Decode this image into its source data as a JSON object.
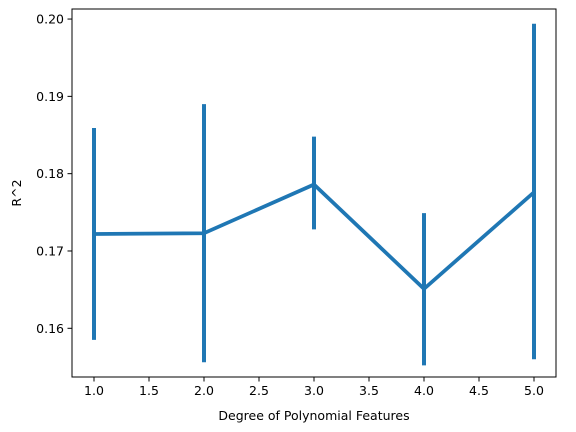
{
  "chart_data": {
    "type": "line",
    "title": "",
    "xlabel": "Degree of Polynomial Features",
    "ylabel": "R^2",
    "x": [
      1.0,
      2.0,
      3.0,
      4.0,
      5.0
    ],
    "series": [
      {
        "values": [
          0.1722,
          0.1723,
          0.1786,
          0.1651,
          0.1776
        ],
        "error_lower": [
          0.1585,
          0.1556,
          0.1728,
          0.1552,
          0.156
        ],
        "error_upper": [
          0.1859,
          0.189,
          0.1848,
          0.1749,
          0.1994
        ],
        "color": "#1f77b4"
      }
    ],
    "xlim": [
      0.8,
      5.2
    ],
    "ylim": [
      0.1537,
      0.2013
    ],
    "xticks": [
      1.0,
      1.5,
      2.0,
      2.5,
      3.0,
      3.5,
      4.0,
      4.5,
      5.0
    ],
    "xtick_labels": [
      "1.0",
      "1.5",
      "2.0",
      "2.5",
      "3.0",
      "3.5",
      "4.0",
      "4.5",
      "5.0"
    ],
    "yticks": [
      0.16,
      0.17,
      0.18,
      0.19,
      0.2
    ],
    "ytick_labels": [
      "0.16",
      "0.17",
      "0.18",
      "0.19",
      "0.20"
    ],
    "grid": false,
    "legend": "none"
  }
}
